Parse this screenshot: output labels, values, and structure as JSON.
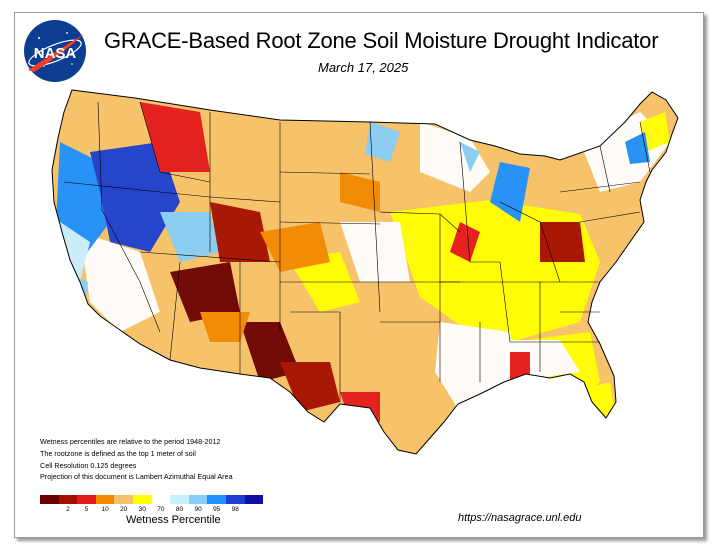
{
  "header": {
    "title": "GRACE-Based Root Zone Soil  Moisture Drought Indicator",
    "date": "March 17, 2025"
  },
  "logo": {
    "text": "NASA",
    "icon": "nasa-meatball-logo"
  },
  "notes": [
    "Wetness percentiles are relative to the period 1948-2012",
    "The rootzone is defined as the top 1 meter of soil",
    "Cell Resolution 0.125 degrees",
    "Projection of this document is Lambert Azimuthal Equal Area"
  ],
  "legend": {
    "title": "Wetness Percentile",
    "colors": [
      "#6b0000",
      "#a50f00",
      "#e31a1c",
      "#f28a00",
      "#f6c26a",
      "#ffff00",
      "#ffffff",
      "#c8f0ff",
      "#87cefa",
      "#1e90ff",
      "#1c3fd0",
      "#1010a0"
    ],
    "ticks": [
      "2",
      "5",
      "10",
      "20",
      "30",
      "70",
      "80",
      "90",
      "95",
      "98"
    ]
  },
  "footer": {
    "url": "https://nasagrace.unl.edu"
  }
}
